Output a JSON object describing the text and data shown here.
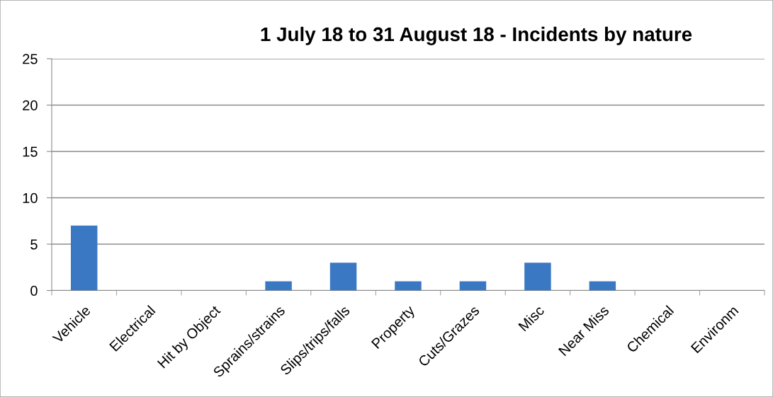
{
  "chart_data": {
    "type": "bar",
    "title": "1 July 18 to 31 August 18 - Incidents by nature",
    "categories": [
      "Vehicle",
      "Electrical",
      "Hit by Object",
      "Sprains/strains",
      "Slips/trips/falls",
      "Property",
      "Cuts/Grazes",
      "Misc",
      "Near Miss",
      "Chemical",
      "Environm"
    ],
    "values": [
      7,
      0,
      0,
      1,
      3,
      1,
      1,
      3,
      1,
      0,
      0
    ],
    "color": "#3b78c4",
    "ylim": [
      0,
      25
    ],
    "yticks": [
      0,
      5,
      10,
      15,
      20,
      25
    ],
    "grid": "y"
  }
}
